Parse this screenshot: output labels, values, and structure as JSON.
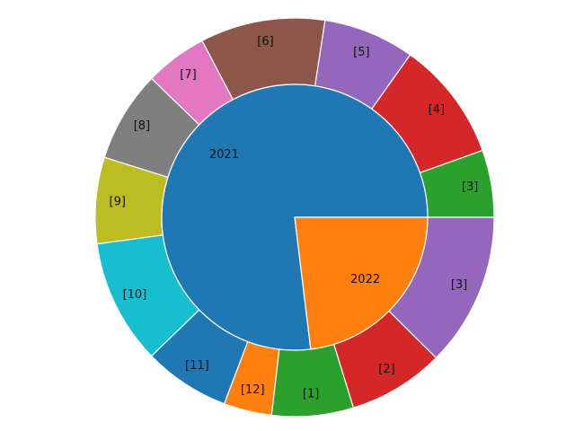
{
  "chart_data": {
    "type": "pie",
    "subtype": "nested-donut",
    "start_angle_deg": 0,
    "direction": "counterclockwise",
    "inner_ring": {
      "labels": [
        "2021",
        "2022"
      ],
      "values": [
        10,
        3
      ],
      "colors": [
        "#1f77b4",
        "#ff7f0e"
      ]
    },
    "outer_ring": {
      "labels": [
        "[3]",
        "[4]",
        "[5]",
        "[6]",
        "[7]",
        "[8]",
        "[9]",
        "[10]",
        "[11]",
        "[12]",
        "[1]",
        "[2]",
        "[3]"
      ],
      "values": [
        0.7,
        1.25,
        0.95,
        1.3,
        0.65,
        0.95,
        0.9,
        1.3,
        0.9,
        0.5,
        0.85,
        1.0,
        1.6
      ],
      "colors": [
        "#2ca02c",
        "#d62728",
        "#9467bd",
        "#8c564b",
        "#e377c2",
        "#7f7f7f",
        "#bcbd22",
        "#17becf",
        "#1f77b4",
        "#ff7f0e",
        "#2ca02c",
        "#d62728",
        "#9467bd"
      ]
    }
  }
}
